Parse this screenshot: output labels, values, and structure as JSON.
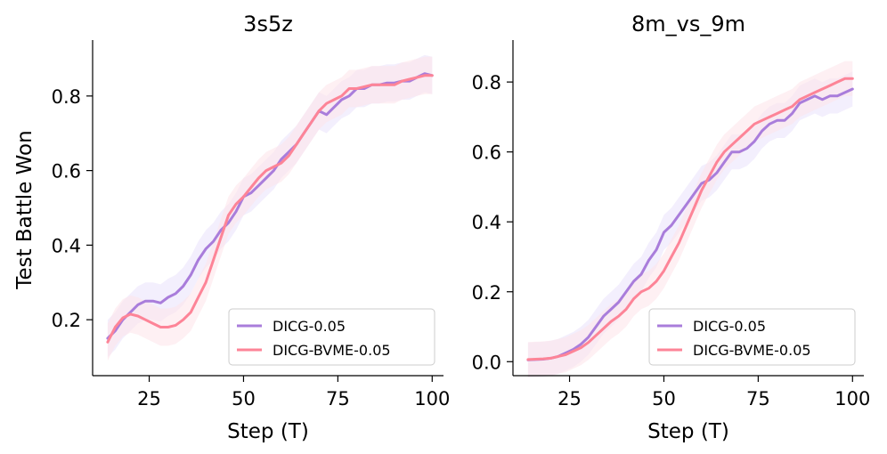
{
  "colors": {
    "dicg": "#a97ddb",
    "bvme": "#fd8497",
    "band_dicg": "#e9e2fb",
    "band_bvme": "#fde3ea"
  },
  "chart_data": [
    {
      "type": "line",
      "title": "3s5z",
      "xlabel": "Step (T)",
      "ylabel": "Test Battle Won",
      "xlim": [
        10,
        103
      ],
      "ylim": [
        0.05,
        0.95
      ],
      "xticks": [
        25,
        50,
        75,
        100
      ],
      "yticks": [
        0.2,
        0.4,
        0.6,
        0.8
      ],
      "xtick_labels": [
        "25",
        "50",
        "75",
        "100"
      ],
      "ytick_labels": [
        "0.2",
        "0.4",
        "0.6",
        "0.8"
      ],
      "legend_position": "bottom-right",
      "series": [
        {
          "name": "DICG-0.05",
          "color_key": "dicg",
          "band": 0.05,
          "x": [
            14,
            16,
            18,
            20,
            22,
            24,
            26,
            28,
            30,
            32,
            34,
            36,
            38,
            40,
            42,
            44,
            46,
            48,
            50,
            52,
            54,
            56,
            58,
            60,
            62,
            64,
            66,
            68,
            70,
            72,
            74,
            76,
            78,
            80,
            82,
            84,
            86,
            88,
            90,
            92,
            94,
            96,
            98,
            100
          ],
          "y": [
            0.15,
            0.17,
            0.2,
            0.22,
            0.24,
            0.25,
            0.25,
            0.245,
            0.26,
            0.27,
            0.29,
            0.32,
            0.36,
            0.39,
            0.41,
            0.44,
            0.46,
            0.49,
            0.53,
            0.54,
            0.56,
            0.58,
            0.6,
            0.63,
            0.65,
            0.67,
            0.7,
            0.73,
            0.76,
            0.75,
            0.77,
            0.79,
            0.8,
            0.82,
            0.82,
            0.83,
            0.83,
            0.835,
            0.835,
            0.84,
            0.84,
            0.85,
            0.86,
            0.855
          ]
        },
        {
          "name": "DICG-BVME-0.05",
          "color_key": "bvme",
          "band": 0.05,
          "x": [
            14,
            16,
            18,
            20,
            22,
            24,
            26,
            28,
            30,
            32,
            34,
            36,
            38,
            40,
            42,
            44,
            46,
            48,
            50,
            52,
            54,
            56,
            58,
            60,
            62,
            64,
            66,
            68,
            70,
            72,
            74,
            76,
            78,
            80,
            82,
            84,
            86,
            88,
            90,
            92,
            94,
            96,
            98,
            100
          ],
          "y": [
            0.14,
            0.18,
            0.205,
            0.215,
            0.21,
            0.2,
            0.19,
            0.18,
            0.18,
            0.185,
            0.2,
            0.22,
            0.26,
            0.3,
            0.36,
            0.42,
            0.48,
            0.51,
            0.53,
            0.555,
            0.58,
            0.6,
            0.61,
            0.62,
            0.64,
            0.67,
            0.7,
            0.73,
            0.76,
            0.78,
            0.79,
            0.8,
            0.82,
            0.82,
            0.825,
            0.83,
            0.83,
            0.83,
            0.83,
            0.84,
            0.845,
            0.85,
            0.855,
            0.855
          ]
        }
      ]
    },
    {
      "type": "line",
      "title": "8m_vs_9m",
      "xlabel": "Step (T)",
      "ylabel": "",
      "xlim": [
        10,
        103
      ],
      "ylim": [
        -0.04,
        0.92
      ],
      "xticks": [
        25,
        50,
        75,
        100
      ],
      "yticks": [
        0.0,
        0.2,
        0.4,
        0.6,
        0.8
      ],
      "xtick_labels": [
        "25",
        "50",
        "75",
        "100"
      ],
      "ytick_labels": [
        "0.0",
        "0.2",
        "0.4",
        "0.6",
        "0.8"
      ],
      "legend_position": "bottom-right",
      "series": [
        {
          "name": "DICG-0.05",
          "color_key": "dicg",
          "band": 0.05,
          "x": [
            14,
            16,
            18,
            20,
            22,
            24,
            26,
            28,
            30,
            32,
            34,
            36,
            38,
            40,
            42,
            44,
            46,
            48,
            50,
            52,
            54,
            56,
            58,
            60,
            62,
            64,
            66,
            68,
            70,
            72,
            74,
            76,
            78,
            80,
            82,
            84,
            86,
            88,
            90,
            92,
            94,
            96,
            98,
            100
          ],
          "y": [
            0.005,
            0.006,
            0.007,
            0.01,
            0.015,
            0.025,
            0.035,
            0.05,
            0.07,
            0.1,
            0.13,
            0.15,
            0.17,
            0.2,
            0.23,
            0.25,
            0.29,
            0.32,
            0.37,
            0.39,
            0.42,
            0.45,
            0.48,
            0.51,
            0.52,
            0.54,
            0.57,
            0.6,
            0.6,
            0.61,
            0.63,
            0.66,
            0.68,
            0.69,
            0.69,
            0.71,
            0.74,
            0.75,
            0.76,
            0.75,
            0.76,
            0.76,
            0.77,
            0.78
          ]
        },
        {
          "name": "DICG-BVME-0.05",
          "color_key": "bvme",
          "band": 0.05,
          "x": [
            14,
            16,
            18,
            20,
            22,
            24,
            26,
            28,
            30,
            32,
            34,
            36,
            38,
            40,
            42,
            44,
            46,
            48,
            50,
            52,
            54,
            56,
            58,
            60,
            62,
            64,
            66,
            68,
            70,
            72,
            74,
            76,
            78,
            80,
            82,
            84,
            86,
            88,
            90,
            92,
            94,
            96,
            98,
            100
          ],
          "y": [
            0.006,
            0.007,
            0.008,
            0.01,
            0.015,
            0.02,
            0.03,
            0.04,
            0.055,
            0.075,
            0.095,
            0.115,
            0.13,
            0.15,
            0.18,
            0.2,
            0.21,
            0.23,
            0.26,
            0.3,
            0.34,
            0.39,
            0.44,
            0.49,
            0.53,
            0.57,
            0.6,
            0.62,
            0.64,
            0.66,
            0.68,
            0.69,
            0.7,
            0.71,
            0.72,
            0.73,
            0.75,
            0.76,
            0.77,
            0.78,
            0.79,
            0.8,
            0.81,
            0.81
          ]
        }
      ]
    }
  ]
}
